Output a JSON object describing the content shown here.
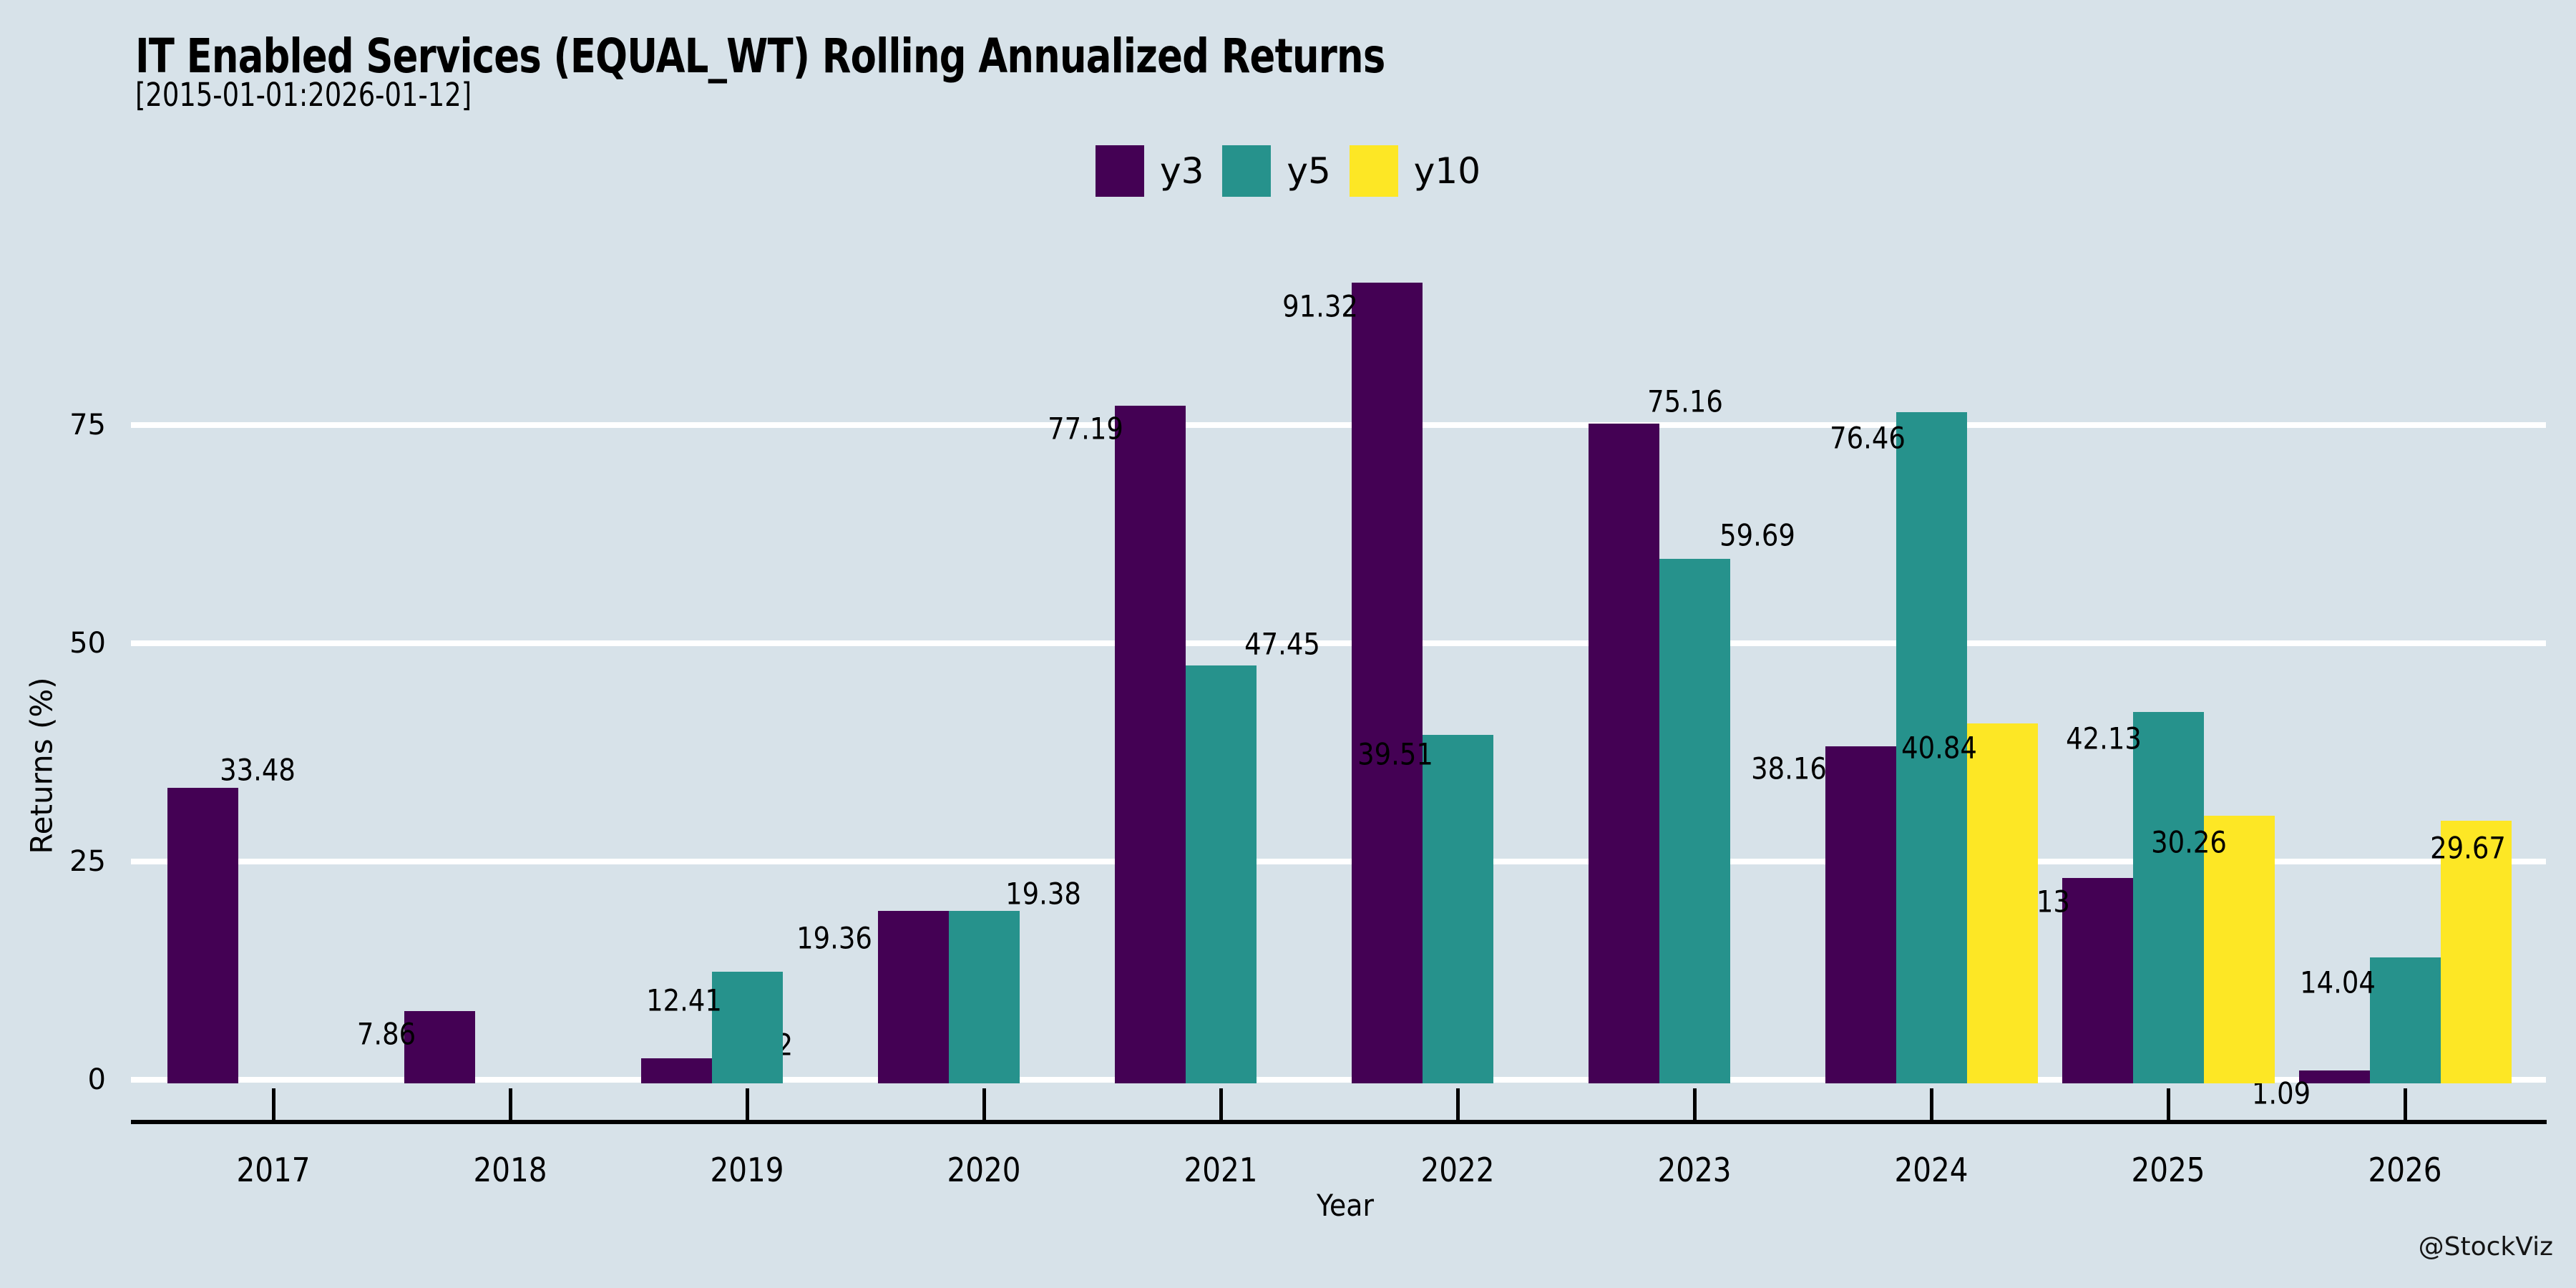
{
  "header": {
    "title": "IT Enabled Services (EQUAL_WT) Rolling Annualized Returns",
    "subtitle": "[2015-01-01:2026-01-12]"
  },
  "watermark": "@StockViz",
  "colors": {
    "background": "#d7e2e9",
    "gridline": "#ffffff",
    "axis": "#000000",
    "text": "#000000",
    "y3": "#440154",
    "y5": "#26928c",
    "y10": "#fde725"
  },
  "chart_data": {
    "type": "bar",
    "title": "IT Enabled Services (EQUAL_WT) Rolling Annualized Returns",
    "subtitle": "[2015-01-01:2026-01-12]",
    "xlabel": "Year",
    "ylabel": "Returns (%)",
    "yticks": [
      0,
      25,
      50,
      75
    ],
    "ylim": [
      0,
      95
    ],
    "grid": "horizontal-white",
    "legend_position": "top-center",
    "categories": [
      "2017",
      "2018",
      "2019",
      "2020",
      "2021",
      "2022",
      "2023",
      "2024",
      "2025",
      "2026"
    ],
    "series": [
      {
        "name": "y3",
        "color": "#440154",
        "values": [
          33.48,
          7.86,
          2.42,
          19.36,
          77.19,
          91.32,
          75.16,
          38.16,
          23.13,
          1.09
        ]
      },
      {
        "name": "y5",
        "color": "#26928c",
        "values": [
          null,
          null,
          12.41,
          19.38,
          47.45,
          39.51,
          59.69,
          76.46,
          42.13,
          14.04
        ]
      },
      {
        "name": "y10",
        "color": "#fde725",
        "values": [
          null,
          null,
          null,
          null,
          null,
          null,
          null,
          40.84,
          30.26,
          29.67
        ]
      }
    ],
    "bar_value_labels": true,
    "label_offsets": {
      "2017-y3": [
        77,
        -25
      ],
      "2018-y3": [
        -74,
        32
      ],
      "2019-y3": [
        122,
        -19
      ],
      "2019-y5": [
        -88,
        40
      ],
      "2020-y3": [
        -110,
        38
      ],
      "2020-y5": [
        83,
        -24
      ],
      "2021-y3": [
        -90,
        32
      ],
      "2021-y5": [
        86,
        -30
      ],
      "2022-y3": [
        -93,
        33
      ],
      "2022-y5": [
        -87,
        27
      ],
      "2023-y3": [
        86,
        -31
      ],
      "2023-y5": [
        88,
        -33
      ],
      "2024-y3": [
        -100,
        31
      ],
      "2024-y5": [
        -89,
        36
      ],
      "2024-y10": [
        -88,
        34
      ],
      "2025-y3": [
        -91,
        33
      ],
      "2025-y5": [
        -90,
        37
      ],
      "2025-y10": [
        -70,
        37
      ],
      "2026-y3": [
        -74,
        32
      ],
      "2026-y5": [
        -94,
        35
      ],
      "2026-y10": [
        -11,
        38
      ]
    }
  }
}
